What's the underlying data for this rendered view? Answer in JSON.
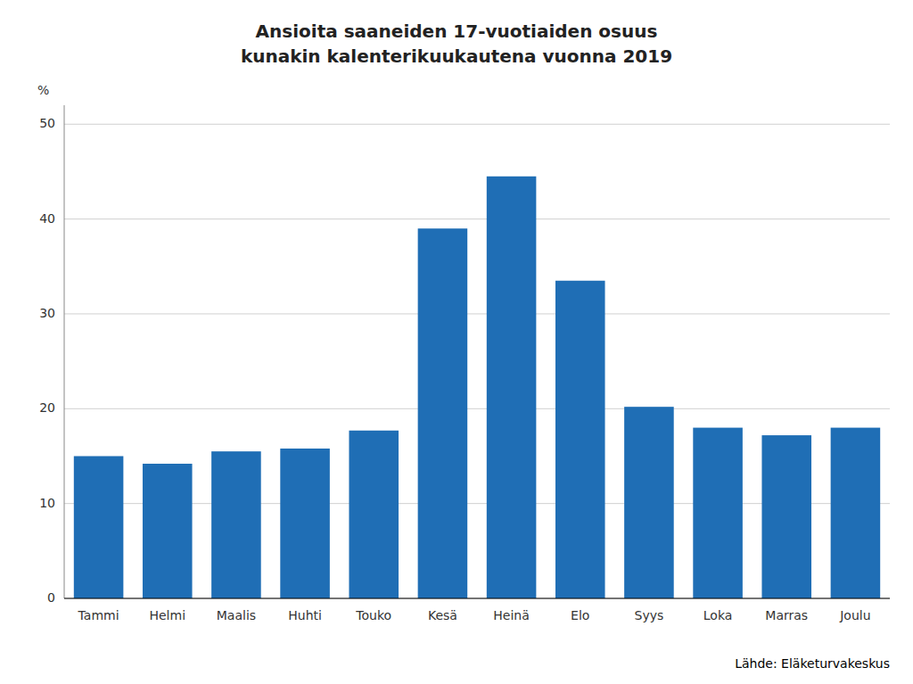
{
  "chart_data": {
    "type": "bar",
    "title": "Ansioita saaneiden 17-vuotiaiden osuus\nkunakin kalenterikuukautena vuonna 2019",
    "ylabel": "%",
    "source": "Lähde: Eläketurvakeskus",
    "categories": [
      "Tammi",
      "Helmi",
      "Maalis",
      "Huhti",
      "Touko",
      "Kesä",
      "Heinä",
      "Elo",
      "Syys",
      "Loka",
      "Marras",
      "Joulu"
    ],
    "values": [
      15.0,
      14.2,
      15.5,
      15.8,
      17.7,
      39.0,
      44.5,
      33.5,
      20.2,
      18.0,
      17.2,
      18.0
    ],
    "color": "#1F6EB5",
    "ylim": [
      0,
      52
    ],
    "yticks": [
      0,
      10,
      20,
      30,
      40,
      50
    ],
    "grid": true
  }
}
